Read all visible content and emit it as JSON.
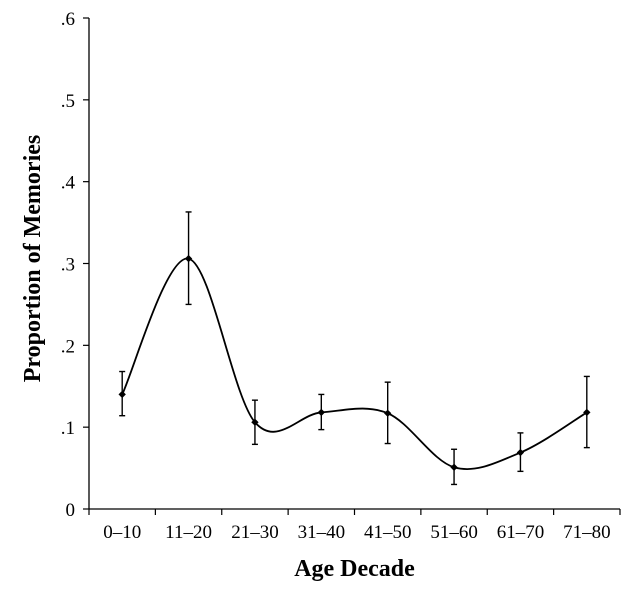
{
  "chart_data": {
    "type": "line",
    "title": "",
    "xlabel": "Age Decade",
    "ylabel": "Proportion of Memories",
    "categories": [
      "0–10",
      "11–20",
      "21–30",
      "31–40",
      "41–50",
      "51–60",
      "61–70",
      "71–80"
    ],
    "values": [
      0.14,
      0.306,
      0.106,
      0.118,
      0.117,
      0.051,
      0.069,
      0.118
    ],
    "error_low": [
      0.114,
      0.25,
      0.079,
      0.097,
      0.08,
      0.03,
      0.046,
      0.075
    ],
    "error_high": [
      0.168,
      0.363,
      0.133,
      0.14,
      0.155,
      0.073,
      0.093,
      0.162
    ],
    "ylim": [
      0,
      0.6
    ],
    "yticks": [
      0,
      0.1,
      0.2,
      0.3,
      0.4,
      0.5,
      0.6
    ],
    "ytick_labels": [
      "0",
      ".1",
      ".2",
      ".3",
      ".4",
      ".5",
      ".6"
    ],
    "grid": false,
    "legend": "none",
    "line_style": "smooth",
    "line_color": "#000000"
  }
}
